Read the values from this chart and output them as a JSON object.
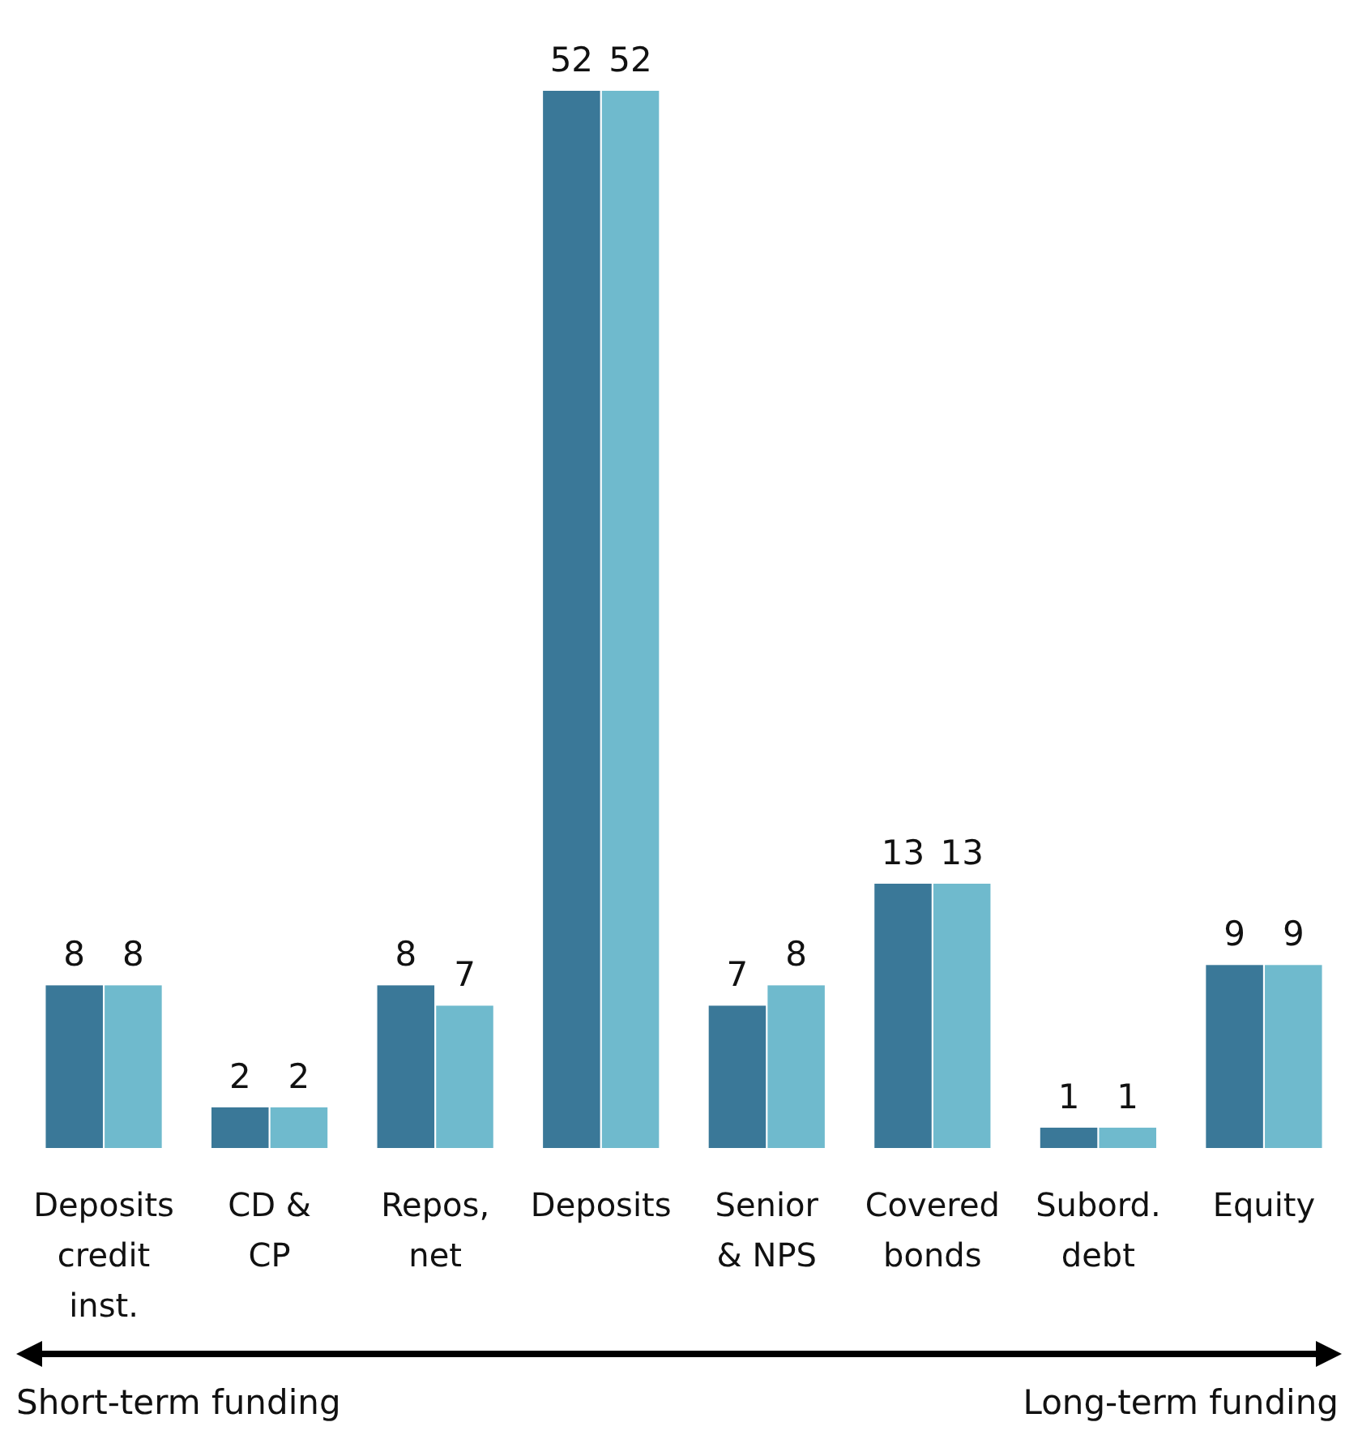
{
  "chart_data": {
    "type": "bar",
    "categories": [
      "Deposits credit inst.",
      "CD & CP",
      "Repos, net",
      "Deposits",
      "Senior & NPS",
      "Covered bonds",
      "Subord. debt",
      "Equity"
    ],
    "series": [
      {
        "color": "#3a7898",
        "values": [
          8,
          2,
          8,
          52,
          7,
          13,
          1,
          9
        ]
      },
      {
        "color": "#6fbacd",
        "values": [
          8,
          2,
          7,
          52,
          8,
          13,
          1,
          9
        ]
      }
    ],
    "data_labels": true,
    "annotations": [
      "Short-term funding",
      "Long-term funding"
    ]
  }
}
